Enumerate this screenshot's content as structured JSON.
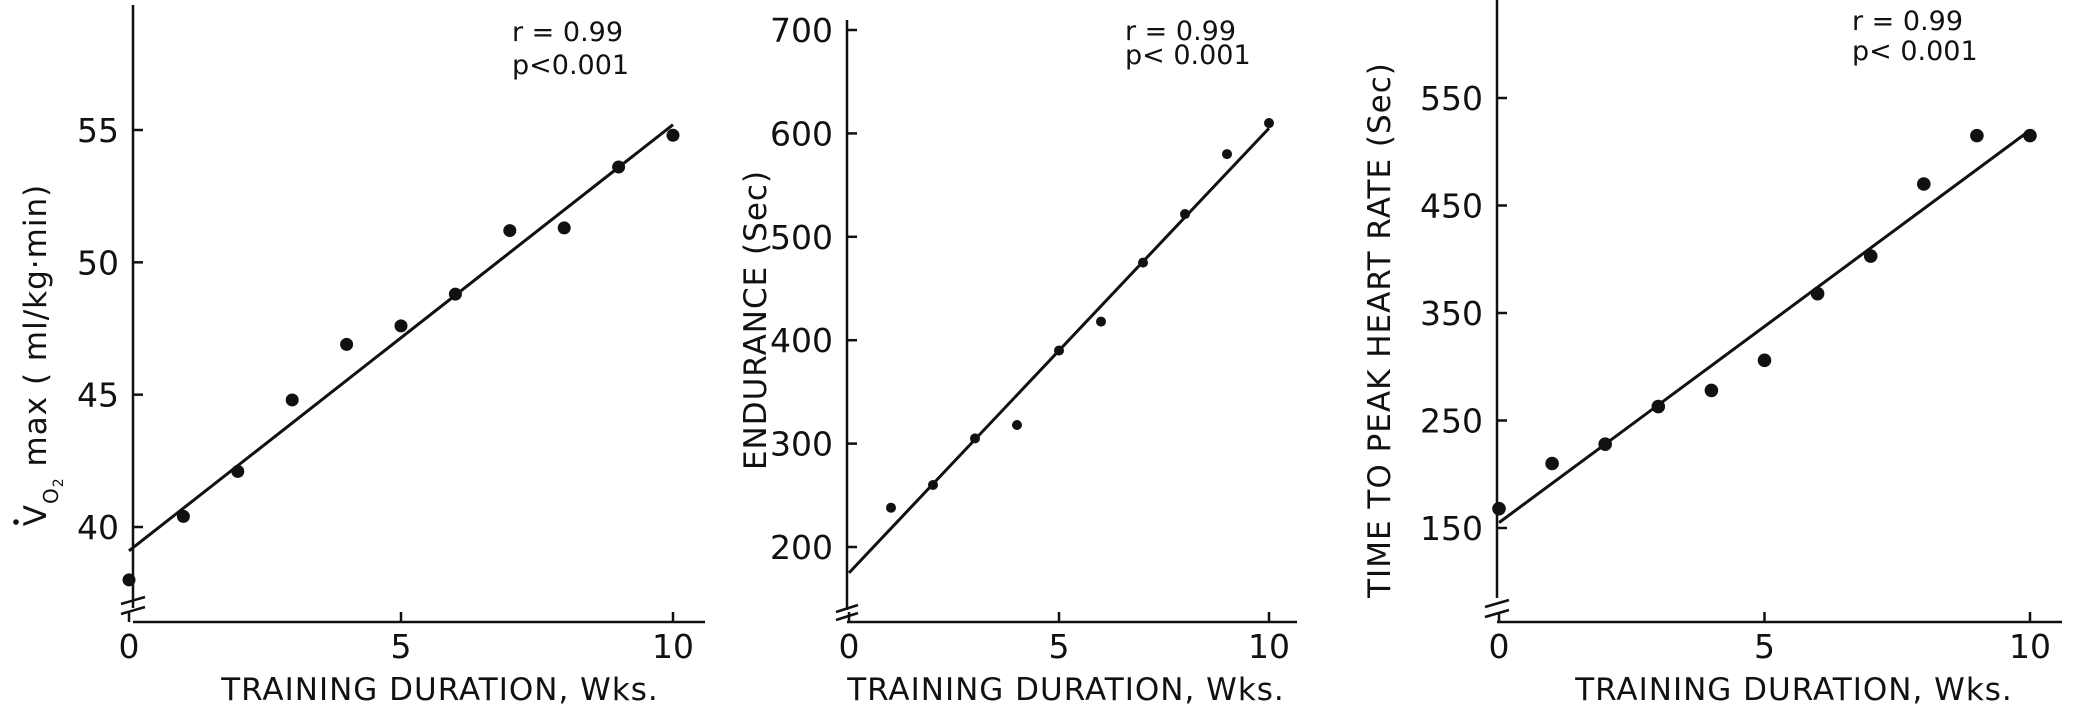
{
  "chart_data": [
    {
      "type": "scatter",
      "xlabel": "TRAINING DURATION, Wks.",
      "ylabel_parts": {
        "symbol": "V",
        "dot": "·",
        "subscript": "O",
        "subscript2": "2",
        "rest": " max ( ml/kg·min)"
      },
      "ylabel": "V̇O2 max ( ml/kg·min)",
      "xticks": [
        0,
        5,
        10
      ],
      "xtick_labels": [
        "0",
        "5",
        "10"
      ],
      "yticks": [
        40,
        45,
        50,
        55
      ],
      "ytick_labels": [
        "40",
        "45",
        "50",
        "55"
      ],
      "xlim": [
        0,
        10.7
      ],
      "ylim": [
        37.3,
        59.9
      ],
      "axis_break": true,
      "grid": false,
      "annotations": [
        "r = 0.99",
        "p<0.001"
      ],
      "series": [
        {
          "x": [
            0,
            1,
            2,
            3,
            4,
            5,
            6,
            7,
            8,
            9,
            10
          ],
          "y": [
            38.0,
            40.4,
            42.1,
            44.8,
            46.9,
            47.6,
            48.8,
            51.2,
            51.3,
            53.6,
            54.8
          ]
        }
      ],
      "fit": {
        "x": [
          0,
          10
        ],
        "y": [
          39.1,
          55.2
        ]
      }
    },
    {
      "type": "scatter",
      "xlabel": "TRAINING DURATION, Wks.",
      "ylabel": "ENDURANCE (Sec)",
      "xticks": [
        0,
        5,
        10
      ],
      "xtick_labels": [
        "0",
        "5",
        "10"
      ],
      "yticks": [
        200,
        300,
        400,
        500,
        600,
        700
      ],
      "ytick_labels": [
        "200",
        "300",
        "400",
        "500",
        "600",
        "700"
      ],
      "xlim": [
        0,
        10.7
      ],
      "ylim": [
        135,
        717
      ],
      "axis_break": true,
      "grid": false,
      "annotations": [
        "r = 0.99",
        "p< 0.001"
      ],
      "series": [
        {
          "x": [
            1,
            2,
            3,
            4,
            5,
            6,
            7,
            8,
            9,
            10
          ],
          "y": [
            238,
            260,
            305,
            318,
            390,
            418,
            475,
            522,
            580,
            610
          ]
        }
      ],
      "fit": {
        "x": [
          0,
          10
        ],
        "y": [
          175,
          605
        ]
      }
    },
    {
      "type": "scatter",
      "xlabel": "TRAINING DURATION, Wks.",
      "ylabel": "TIME TO PEAK HEART RATE (Sec)",
      "xticks": [
        0,
        5,
        10
      ],
      "xtick_labels": [
        "0",
        "5",
        "10"
      ],
      "yticks": [
        150,
        250,
        350,
        450,
        550
      ],
      "ytick_labels": [
        "150",
        "250",
        "350",
        "450",
        "550"
      ],
      "xlim": [
        0,
        10.5
      ],
      "ylim": [
        92,
        640
      ],
      "axis_break": true,
      "grid": false,
      "annotations": [
        "r = 0.99",
        "p< 0.001"
      ],
      "series": [
        {
          "x": [
            0,
            1,
            2,
            3,
            4,
            5,
            6,
            7,
            8,
            9,
            10
          ],
          "y": [
            168,
            210,
            228,
            263,
            278,
            306,
            368,
            403,
            470,
            515,
            515
          ]
        }
      ],
      "fit": {
        "x": [
          0,
          10
        ],
        "y": [
          155,
          520
        ]
      }
    }
  ]
}
